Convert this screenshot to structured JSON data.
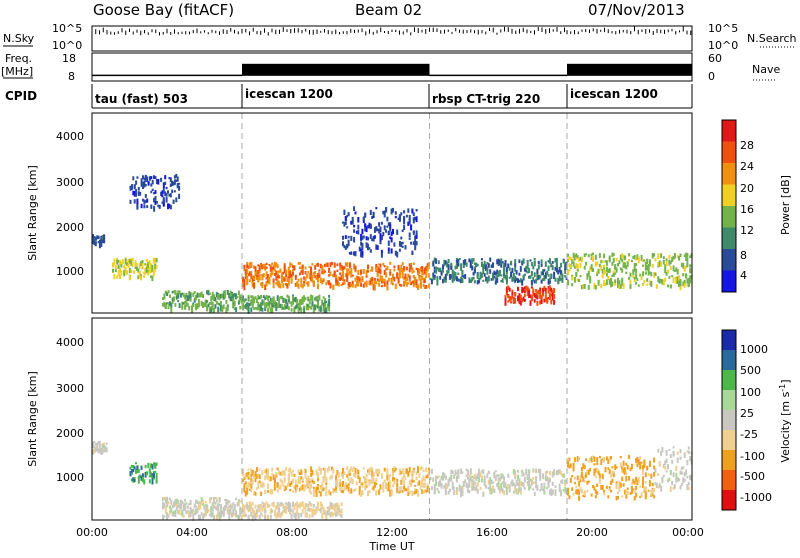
{
  "header": {
    "station": "Goose Bay (fitACF)",
    "beam": "Beam 02",
    "date": "07/Nov/2013"
  },
  "summary_panel": {
    "nsky_label": "N.Sky",
    "nsky_ticks": [
      "10^5",
      "10^0"
    ],
    "nsearch_label": "N.Search",
    "nsearch_ticks": [
      "10^5",
      "10^0"
    ],
    "freq_label_1": "Freq.",
    "freq_label_2": "[MHz]",
    "freq_ticks": [
      "18",
      "8"
    ],
    "nave_label": "Nave",
    "nave_ticks": [
      "60",
      "0"
    ],
    "cpid_label": "CPID",
    "cpid_segments": [
      {
        "label": "tau (fast) 503",
        "start_hour": 0,
        "end_hour": 6
      },
      {
        "label": "icescan 1200",
        "start_hour": 6,
        "end_hour": 13.5
      },
      {
        "label": "rbsp CT-trig 220",
        "start_hour": 13.5,
        "end_hour": 19
      },
      {
        "label": "icescan 1200",
        "start_hour": 19,
        "end_hour": 24
      }
    ]
  },
  "power_panel": {
    "ylabel": "Slant Range [km]",
    "yticks": [
      "1000",
      "2000",
      "3000",
      "4000"
    ],
    "colorbar_label": "Power [dB]",
    "colorbar_ticks": [
      "4",
      "8",
      "12",
      "16",
      "20",
      "24",
      "28"
    ],
    "colors": [
      "#1515e6",
      "#2a4a9a",
      "#3f8a6a",
      "#74b24a",
      "#f0d020",
      "#f09010",
      "#f05010",
      "#e01818"
    ]
  },
  "velocity_panel": {
    "ylabel": "Slant Range [km]",
    "yticks": [
      "1000",
      "2000",
      "3000",
      "4000"
    ],
    "colorbar_label": "Velocity [m s",
    "colorbar_label_sup": "-1",
    "colorbar_ticks": [
      "-1000",
      "-500",
      "-100",
      "-25",
      "25",
      "100",
      "500",
      "1000"
    ],
    "colors": [
      "#e01010",
      "#f06010",
      "#f0a020",
      "#f0d090",
      "#c8c8c0",
      "#a8d898",
      "#4cb84c",
      "#2a6a9a",
      "#1a2aa8"
    ]
  },
  "xaxis": {
    "label": "Time UT",
    "ticks": [
      "00:00",
      "04:00",
      "08:00",
      "12:00",
      "16:00",
      "20:00",
      "00:00"
    ]
  },
  "chart_data": [
    {
      "type": "line",
      "title": "Goose Bay (fitACF)",
      "ylabel": "N.Sky / N.Search",
      "x_unit": "hours UT",
      "series": [
        {
          "name": "N.Sky",
          "x": [
            0,
            6,
            13.5,
            19,
            24
          ],
          "values": [
            10000,
            10000,
            30000,
            20000,
            20000
          ]
        }
      ]
    },
    {
      "type": "line",
      "ylabel": "Freq. [MHz]",
      "x_unit": "hours UT",
      "series": [
        {
          "name": "Freq",
          "x": [
            0,
            6,
            13.5,
            19,
            24
          ],
          "values": [
            10,
            12,
            10,
            12,
            12
          ]
        }
      ]
    },
    {
      "type": "heatmap",
      "ylabel": "Slant Range [km]",
      "xlabel": "Time UT",
      "ylim": [
        200,
        4500
      ],
      "xlim": [
        0,
        24
      ],
      "colorbar": "Power [dB]",
      "color_range": [
        0,
        30
      ],
      "regions": [
        {
          "t0": 0.0,
          "t1": 0.5,
          "r0": 1700,
          "r1": 1900,
          "value": 6
        },
        {
          "t0": 0.8,
          "t1": 2.6,
          "r0": 1000,
          "r1": 1400,
          "value": 16
        },
        {
          "t0": 1.5,
          "t1": 3.5,
          "r0": 2500,
          "r1": 3200,
          "value": 5
        },
        {
          "t0": 2.8,
          "t1": 6.0,
          "r0": 300,
          "r1": 700,
          "value": 12
        },
        {
          "t0": 6.0,
          "t1": 13.5,
          "r0": 800,
          "r1": 1300,
          "value": 22
        },
        {
          "t0": 6.0,
          "t1": 9.5,
          "r0": 300,
          "r1": 600,
          "value": 12
        },
        {
          "t0": 13.5,
          "t1": 19.0,
          "r0": 900,
          "r1": 1400,
          "value": 8
        },
        {
          "t0": 16.5,
          "t1": 18.5,
          "r0": 450,
          "r1": 800,
          "value": 26
        },
        {
          "t0": 19.0,
          "t1": 24.0,
          "r0": 800,
          "r1": 1500,
          "value": 14
        },
        {
          "t0": 10.0,
          "t1": 13.0,
          "r0": 1500,
          "r1": 2500,
          "value": 5
        }
      ]
    },
    {
      "type": "heatmap",
      "ylabel": "Slant Range [km]",
      "xlabel": "Time UT",
      "ylim": [
        200,
        4500
      ],
      "xlim": [
        0,
        24
      ],
      "colorbar": "Velocity [m s-1]",
      "color_range": [
        -1000,
        1000
      ],
      "regions": [
        {
          "t0": 0.0,
          "t1": 0.6,
          "r0": 1700,
          "r1": 1900,
          "value": 0
        },
        {
          "t0": 1.5,
          "t1": 2.6,
          "r0": 1050,
          "r1": 1450,
          "value": 500
        },
        {
          "t0": 2.8,
          "t1": 6.0,
          "r0": 300,
          "r1": 700,
          "value": 0
        },
        {
          "t0": 6.0,
          "t1": 13.5,
          "r0": 800,
          "r1": 1350,
          "value": -300
        },
        {
          "t0": 6.0,
          "t1": 10.0,
          "r0": 300,
          "r1": 600,
          "value": -150
        },
        {
          "t0": 13.5,
          "t1": 19.0,
          "r0": 800,
          "r1": 1300,
          "value": 0
        },
        {
          "t0": 19.0,
          "t1": 22.5,
          "r0": 700,
          "r1": 1600,
          "value": -400
        },
        {
          "t0": 22.5,
          "t1": 24.0,
          "r0": 900,
          "r1": 1800,
          "value": 0
        }
      ]
    }
  ]
}
